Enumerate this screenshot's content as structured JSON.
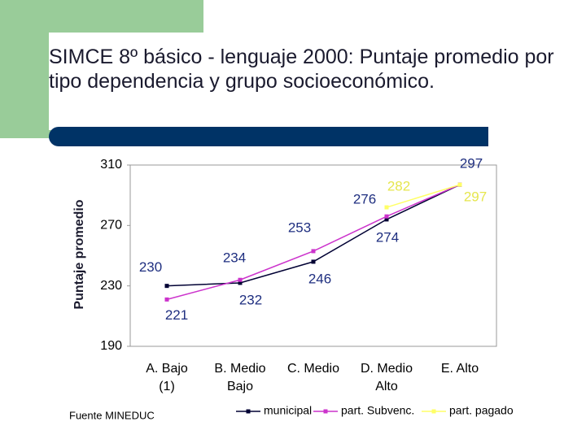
{
  "chart_data": {
    "type": "line",
    "title": "SIMCE 8º básico - lenguaje 2000: Puntaje promedio por tipo dependencia y grupo socioeconómico.",
    "y_label": "Puntaje promedio",
    "source": "Fuente MINEDUC",
    "categories": [
      "A. Bajo\n(1)",
      "B. Medio\nBajo",
      "C. Medio",
      "D. Medio\nAlto",
      "E. Alto"
    ],
    "ylim": [
      190,
      310
    ],
    "yticks": [
      190,
      230,
      270,
      310
    ],
    "series": [
      {
        "name": "municipal",
        "color": "#000033",
        "label_color": "#1f2f80",
        "values": [
          230,
          232,
          246,
          274,
          297
        ],
        "value_labels": [
          "230",
          "232",
          "246",
          "274",
          null
        ]
      },
      {
        "name": "part. Subvenc.",
        "color": "#cc33cc",
        "label_color": "#1f2f80",
        "values": [
          221,
          234,
          253,
          276,
          297
        ],
        "value_labels": [
          "221",
          "234",
          "253",
          "276",
          "297"
        ]
      },
      {
        "name": "part. pagado",
        "color": "#ffff66",
        "label_color": "#e6e64d",
        "values": [
          null,
          null,
          null,
          282,
          297
        ],
        "value_labels": [
          null,
          null,
          null,
          "282",
          "297"
        ]
      }
    ]
  }
}
